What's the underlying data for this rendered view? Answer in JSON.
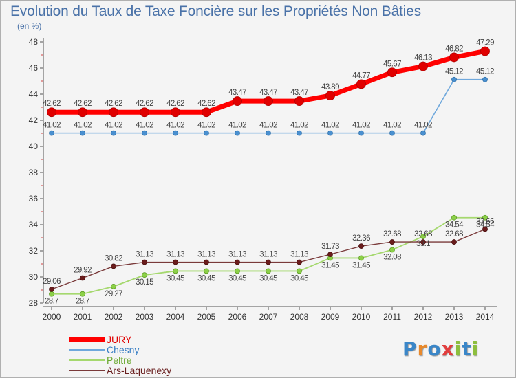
{
  "header": {
    "title": "Evolution du Taux de Taxe Foncière sur les Propriétés Non Bâties",
    "unit": "(en %)"
  },
  "logo": {
    "text": "Proxiti",
    "letters": [
      {
        "ch": "P",
        "color": "#3a86c8"
      },
      {
        "ch": "r",
        "color": "#e8892c"
      },
      {
        "ch": "o",
        "color": "#3a86c8"
      },
      {
        "ch": "x",
        "color": "#e23d3d"
      },
      {
        "ch": "i",
        "color": "#8dbf3d"
      },
      {
        "ch": "t",
        "color": "#3a86c8"
      },
      {
        "ch": "i",
        "color": "#8dbf3d"
      }
    ]
  },
  "chart_data": {
    "type": "line",
    "title": "Evolution du Taux de Taxe Foncière sur les Propriétés Non Bâties",
    "ylabel": "(en %)",
    "xlabel": "",
    "x": [
      "2000",
      "2001",
      "2002",
      "2003",
      "2004",
      "2005",
      "2006",
      "2007",
      "2008",
      "2009",
      "2010",
      "2011",
      "2012",
      "2013",
      "2014"
    ],
    "ylim": [
      28,
      48
    ],
    "yticks": [
      28,
      30,
      32,
      34,
      36,
      38,
      40,
      42,
      44,
      46,
      48
    ],
    "grid": false,
    "legend": "bottom-left",
    "series": [
      {
        "name": "JURY",
        "color": "#ff0000",
        "values": [
          42.62,
          42.62,
          42.62,
          42.62,
          42.62,
          42.62,
          43.47,
          43.47,
          43.47,
          43.89,
          44.77,
          45.67,
          46.13,
          46.82,
          47.29
        ],
        "labels": [
          "42.62",
          "42.62",
          "42.62",
          "42.62",
          "42.62",
          "42.62",
          "43.47",
          "43.47",
          "43.47",
          "43.89",
          "44.77",
          "45.67",
          "46.13",
          "46.82",
          "47.29"
        ]
      },
      {
        "name": "Chesny",
        "color": "#6fa8dc",
        "values": [
          41.02,
          41.02,
          41.02,
          41.02,
          41.02,
          41.02,
          41.02,
          41.02,
          41.02,
          41.02,
          41.02,
          41.02,
          41.02,
          45.12,
          45.12
        ],
        "labels": [
          "41.02",
          "41.02",
          "41.02",
          "41.02",
          "41.02",
          "41.02",
          "41.02",
          "41.02",
          "41.02",
          "41.02",
          "41.02",
          "41.02",
          "41.02",
          "45.12",
          "45.12"
        ]
      },
      {
        "name": "Peltre",
        "color": "#a5d86e",
        "values": [
          28.7,
          28.7,
          29.27,
          30.15,
          30.45,
          30.45,
          30.45,
          30.45,
          30.45,
          31.45,
          31.45,
          32.08,
          33.1,
          34.54,
          34.54
        ],
        "labels": [
          "28.7",
          "28.7",
          "29.27",
          "30.15",
          "30.45",
          "30.45",
          "30.45",
          "30.45",
          "30.45",
          "31.45",
          "31.45",
          "32.08",
          "33.1",
          "34.54",
          "34.54"
        ]
      },
      {
        "name": "Ars-Laquenexy",
        "color": "#7a3a3a",
        "values": [
          29.06,
          29.92,
          30.82,
          31.13,
          31.13,
          31.13,
          31.13,
          31.13,
          31.13,
          31.73,
          32.36,
          32.68,
          32.68,
          32.68,
          33.66
        ],
        "labels": [
          "29.06",
          "29.92",
          "30.82",
          "31.13",
          "31.13",
          "31.13",
          "31.13",
          "31.13",
          "31.13",
          "31.73",
          "32.36",
          "32.68",
          "32.68",
          "32.68",
          "33.66"
        ]
      }
    ]
  }
}
